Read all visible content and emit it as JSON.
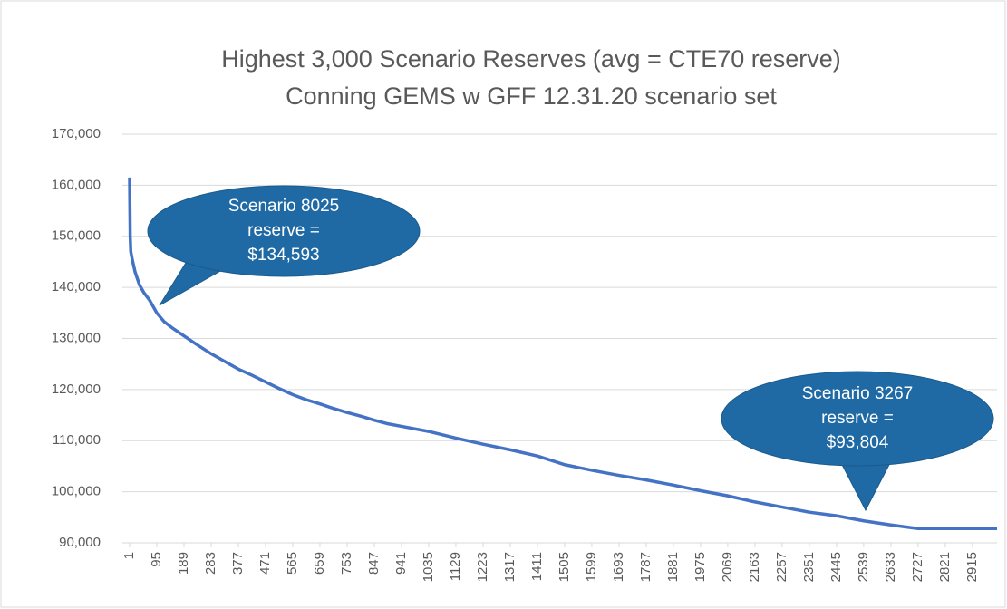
{
  "chart_data": {
    "type": "line",
    "title": [
      "Highest 3,000 Scenario Reserves (avg = CTE70 reserve)",
      "Conning GEMS w GFF 12.31.20 scenario set"
    ],
    "series": [
      {
        "color": "#4472c4",
        "x": [
          1,
          3,
          5,
          10,
          20,
          35,
          50,
          70,
          95,
          120,
          150,
          189,
          236,
          283,
          330,
          377,
          424,
          471,
          518,
          565,
          612,
          659,
          706,
          753,
          800,
          847,
          894,
          941,
          1035,
          1129,
          1223,
          1317,
          1411,
          1505,
          1599,
          1693,
          1787,
          1881,
          1975,
          2069,
          2163,
          2257,
          2351,
          2445,
          2539,
          2633,
          2700,
          2727,
          2821,
          2915,
          3000
        ],
        "values": [
          161500,
          150000,
          147000,
          145500,
          143000,
          140500,
          139000,
          137500,
          135000,
          133300,
          132000,
          130500,
          128700,
          127000,
          125500,
          124000,
          122800,
          121500,
          120200,
          119000,
          118000,
          117200,
          116300,
          115500,
          114800,
          114000,
          113300,
          112800,
          111800,
          110500,
          109300,
          108200,
          107000,
          105300,
          104200,
          103200,
          102300,
          101300,
          100200,
          99200,
          98000,
          97000,
          96000,
          95300,
          94300,
          93500,
          93000,
          92800,
          92800,
          92800,
          92800
        ]
      }
    ],
    "xlim": [
      1,
      3000
    ],
    "xticks": [
      1,
      95,
      189,
      283,
      377,
      471,
      565,
      659,
      753,
      847,
      941,
      1035,
      1129,
      1223,
      1317,
      1411,
      1505,
      1599,
      1693,
      1787,
      1881,
      1975,
      2069,
      2163,
      2257,
      2351,
      2445,
      2539,
      2633,
      2727,
      2821,
      2915
    ],
    "ylim": [
      90000,
      170000
    ],
    "yticks": [
      {
        "value": 90000,
        "label": "90,000"
      },
      {
        "value": 100000,
        "label": "100,000"
      },
      {
        "value": 110000,
        "label": "110,000"
      },
      {
        "value": 120000,
        "label": "120,000"
      },
      {
        "value": 130000,
        "label": "130,000"
      },
      {
        "value": 140000,
        "label": "140,000"
      },
      {
        "value": 150000,
        "label": "150,000"
      },
      {
        "value": 160000,
        "label": "160,000"
      },
      {
        "value": 170000,
        "label": "170,000"
      }
    ],
    "grid": true,
    "annotations": [
      {
        "lines": [
          "Scenario 8025",
          "reserve =",
          "$134,593"
        ],
        "color": "#1f6aa5"
      },
      {
        "lines": [
          "Scenario 3267",
          "reserve =",
          "$93,804"
        ],
        "color": "#1f6aa5"
      }
    ]
  }
}
